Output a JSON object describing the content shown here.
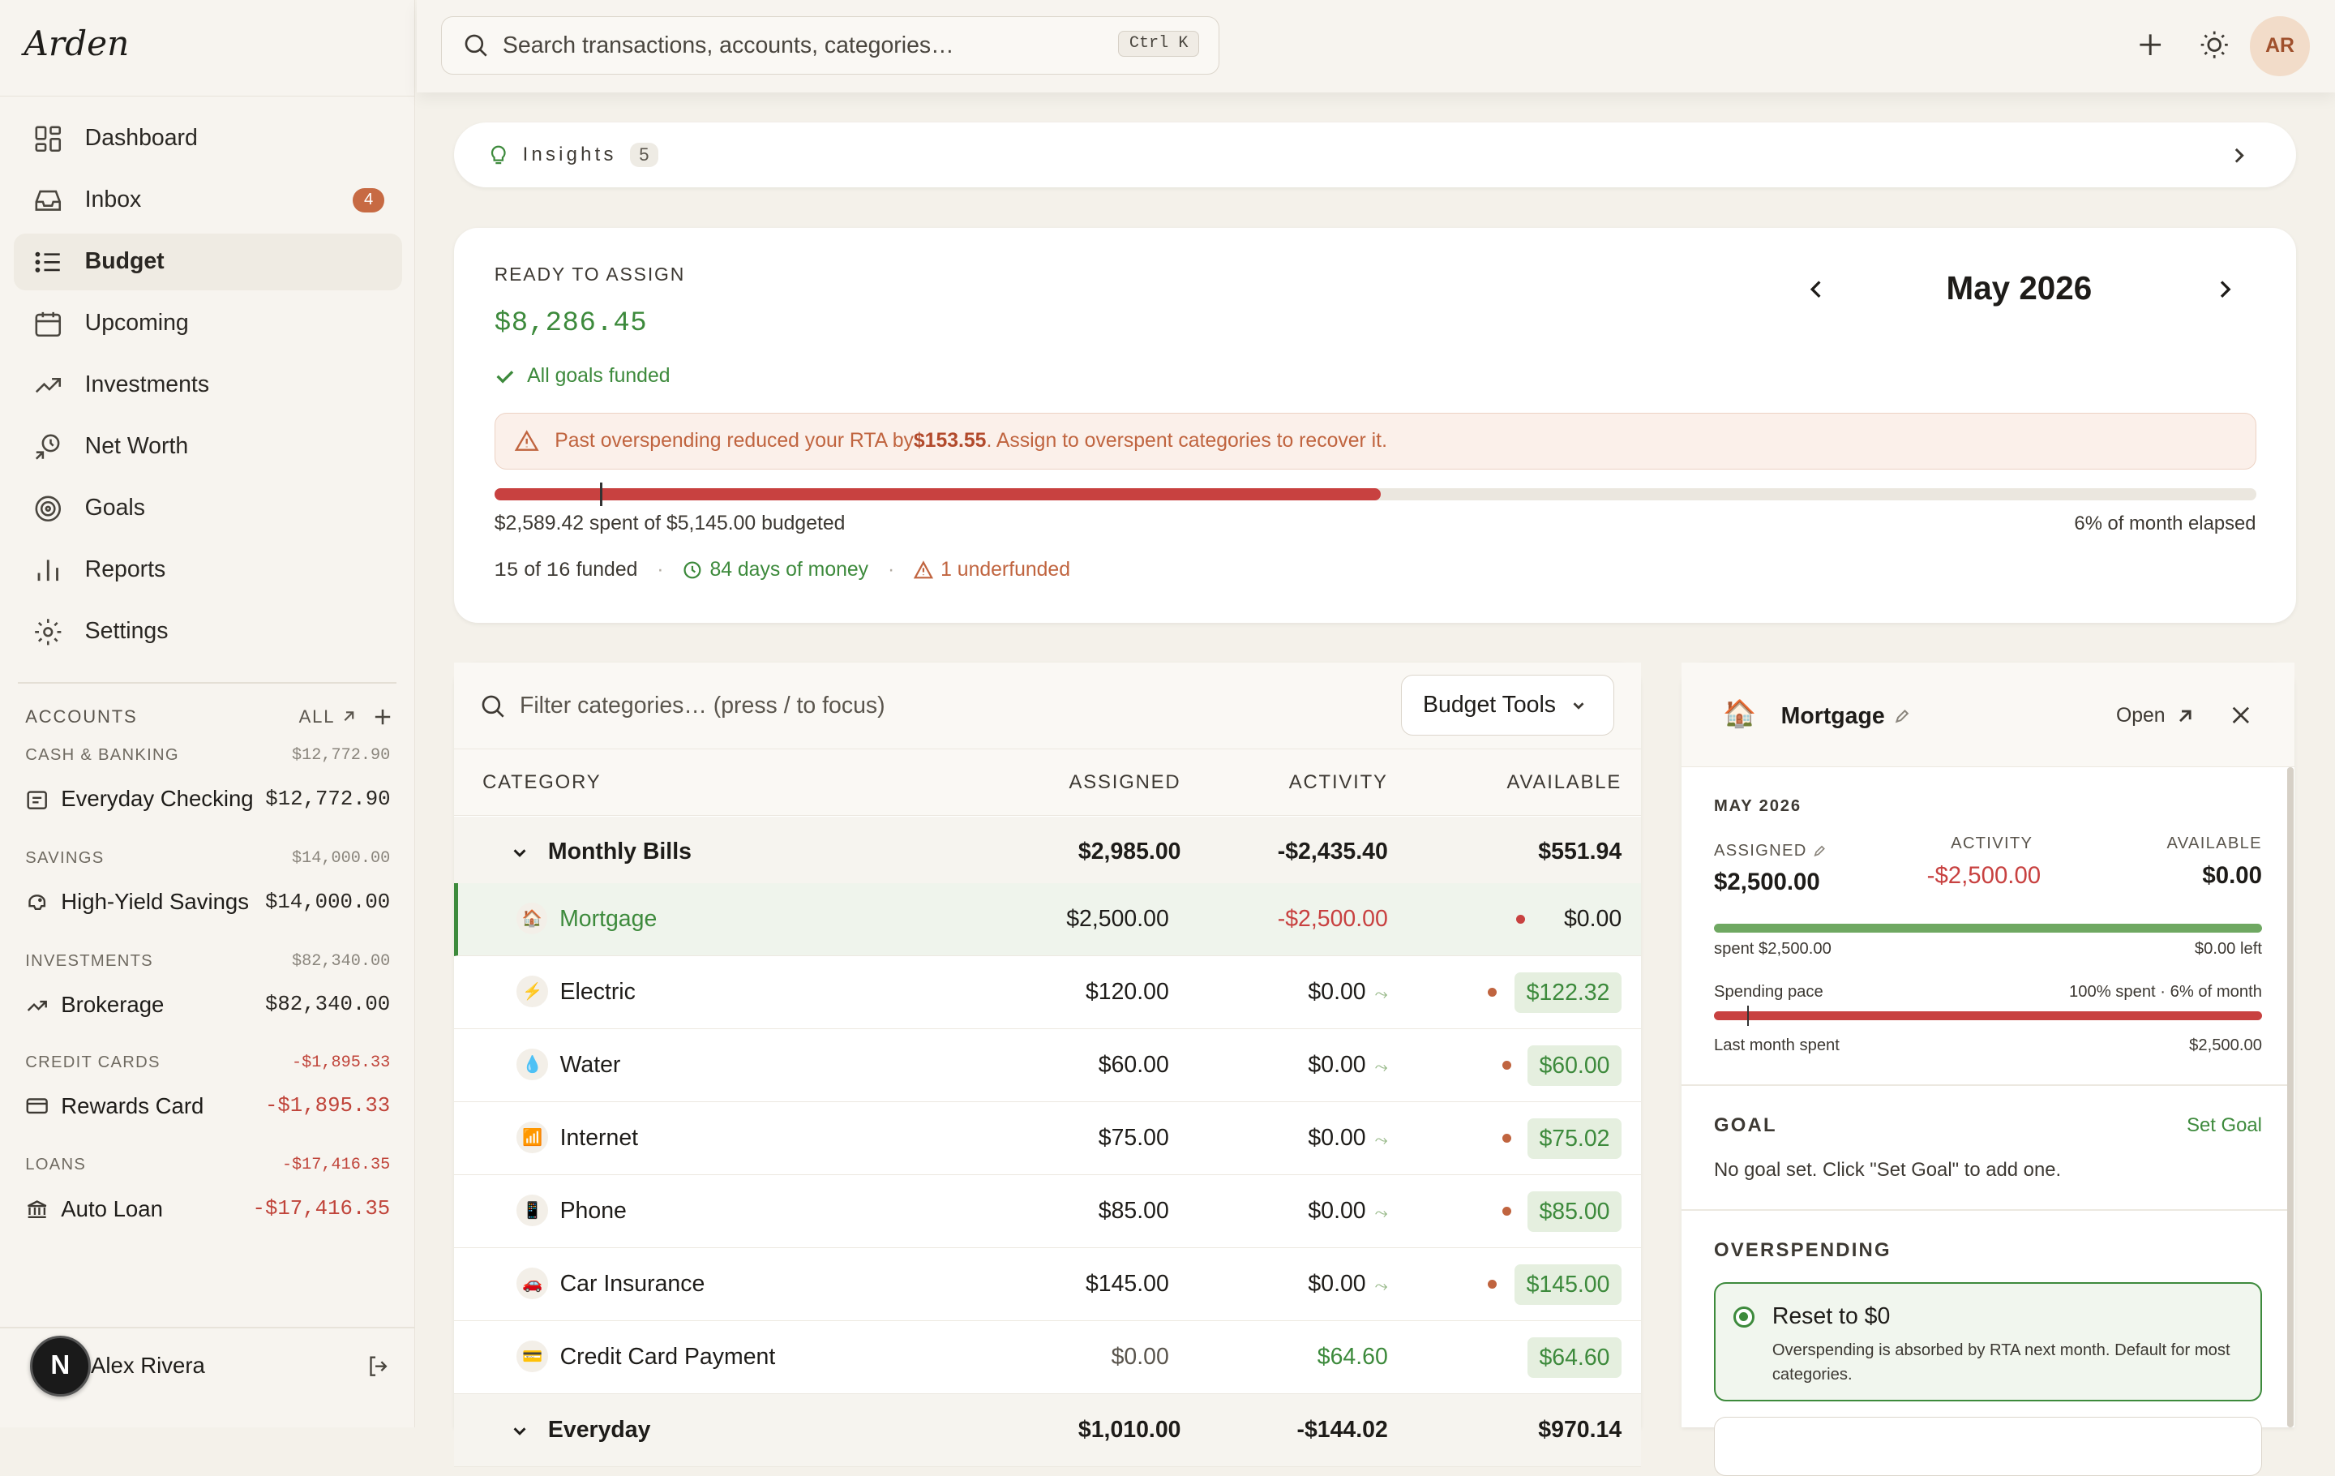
{
  "app": {
    "logo": "Arden"
  },
  "sidebar": {
    "nav": [
      {
        "label": "Dashboard",
        "icon": "dashboard-icon"
      },
      {
        "label": "Inbox",
        "icon": "inbox-icon",
        "badge": "4"
      },
      {
        "label": "Budget",
        "icon": "list-icon",
        "active": true
      },
      {
        "label": "Upcoming",
        "icon": "calendar-icon"
      },
      {
        "label": "Investments",
        "icon": "trend-icon"
      },
      {
        "label": "Net Worth",
        "icon": "net-worth-icon"
      },
      {
        "label": "Goals",
        "icon": "target-icon"
      },
      {
        "label": "Reports",
        "icon": "bar-chart-icon"
      },
      {
        "label": "Settings",
        "icon": "gear-icon"
      }
    ],
    "accounts_title": "ACCOUNTS",
    "accounts_all": "ALL",
    "groups": [
      {
        "name": "CASH & BANKING",
        "total": "$12,772.90",
        "account": "Everyday Checking",
        "amount": "$12,772.90",
        "icon": "card-icon"
      },
      {
        "name": "SAVINGS",
        "total": "$14,000.00",
        "account": "High-Yield Savings",
        "amount": "$14,000.00",
        "icon": "piggy-icon"
      },
      {
        "name": "INVESTMENTS",
        "total": "$82,340.00",
        "account": "Brokerage",
        "amount": "$82,340.00",
        "icon": "trend-icon"
      },
      {
        "name": "CREDIT CARDS",
        "total": "-$1,895.33",
        "account": "Rewards Card",
        "amount": "-$1,895.33",
        "icon": "credit-card-icon",
        "negative": true
      },
      {
        "name": "LOANS",
        "total": "-$17,416.35",
        "account": "Auto Loan",
        "amount": "-$17,416.35",
        "icon": "bank-icon",
        "negative": true
      }
    ],
    "user": {
      "initial": "N",
      "name": "Alex Rivera"
    }
  },
  "topbar": {
    "search_placeholder": "Search transactions, accounts, categories…",
    "shortcut": "Ctrl K",
    "avatar": "AR"
  },
  "insights": {
    "label": "Insights",
    "count": "5"
  },
  "rta": {
    "label": "READY TO ASSIGN",
    "amount": "$8,286.45",
    "goals": "All goals funded",
    "month": "May 2026",
    "warning_pre": "Past overspending reduced your RTA by ",
    "warning_amount": "$153.55",
    "warning_post": ". Assign to overspent categories to recover it.",
    "spent_text": "$2,589.42 spent of $5,145.00 budgeted",
    "spent_fraction": 0.503,
    "elapsed_text": "6% of month elapsed",
    "elapsed_fraction": 0.06,
    "funded_num": "15",
    "funded_rest": " of ",
    "funded_total": "16",
    "funded_label": " funded",
    "days": "84 days of money",
    "underfunded": "1 underfunded"
  },
  "table": {
    "filter_placeholder": "Filter categories… (press / to focus)",
    "tools": "Budget Tools",
    "headers": {
      "category": "CATEGORY",
      "assigned": "ASSIGNED",
      "activity": "ACTIVITY",
      "available": "AVAILABLE"
    },
    "group": {
      "name": "Monthly Bills",
      "assigned": "$2,985.00",
      "activity": "-$2,435.40",
      "available": "$551.94"
    },
    "rows": [
      {
        "name": "Mortgage",
        "icon": "🏠",
        "assigned": "$2,500.00",
        "activity": "-$2,500.00",
        "available": "$0.00",
        "selected": true
      },
      {
        "name": "Electric",
        "icon": "⚡",
        "assigned": "$120.00",
        "activity": "$0.00",
        "available": "$122.32"
      },
      {
        "name": "Water",
        "icon": "💧",
        "assigned": "$60.00",
        "activity": "$0.00",
        "available": "$60.00"
      },
      {
        "name": "Internet",
        "icon": "📶",
        "assigned": "$75.00",
        "activity": "$0.00",
        "available": "$75.02"
      },
      {
        "name": "Phone",
        "icon": "📱",
        "assigned": "$85.00",
        "activity": "$0.00",
        "available": "$85.00"
      },
      {
        "name": "Car Insurance",
        "icon": "🚗",
        "assigned": "$145.00",
        "activity": "$0.00",
        "available": "$145.00"
      },
      {
        "name": "Credit Card Payment",
        "icon": "💳",
        "assigned": "$0.00",
        "activity": "$64.60",
        "available": "$64.60"
      }
    ],
    "group2": {
      "name": "Everyday",
      "assigned": "$1,010.00",
      "activity": "-$144.02",
      "available": "$970.14"
    }
  },
  "detail": {
    "icon": "🏠",
    "title": "Mortgage",
    "open": "Open",
    "month": "MAY 2026",
    "assigned_label": "ASSIGNED",
    "assigned": "$2,500.00",
    "activity_label": "ACTIVITY",
    "activity": "-$2,500.00",
    "available_label": "AVAILABLE",
    "available": "$0.00",
    "spent": "spent $2,500.00",
    "left": "$0.00 left",
    "spent_fraction": 1.0,
    "pace_label": "Spending pace",
    "pace_value": "100% spent · 6% of month",
    "pace_fraction": 1.0,
    "pace_marker": 0.06,
    "last_label": "Last month spent",
    "last_value": "$2,500.00",
    "goal_title": "GOAL",
    "goal_action": "Set Goal",
    "goal_text": "No goal set. Click \"Set Goal\" to add one.",
    "over_title": "OVERSPENDING",
    "option_title": "Reset to $0",
    "option_desc": "Overspending is absorbed by RTA next month. Default for most categories."
  },
  "colors": {
    "accent_green": "#3d8a3c",
    "danger_red": "#c84140",
    "warning_orange": "#c0643f"
  }
}
